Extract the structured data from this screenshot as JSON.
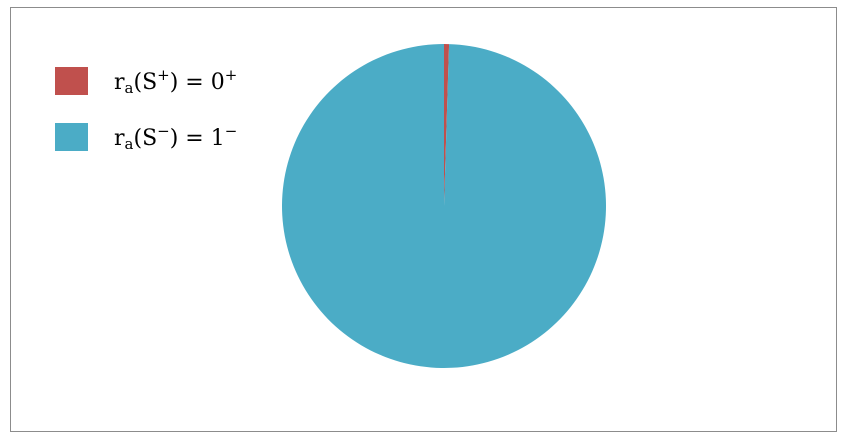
{
  "chart_data": {
    "type": "pie",
    "title": "",
    "legend_position": "top-left",
    "slices": [
      {
        "label_parts": [
          "r",
          "a",
          "(S",
          "+",
          ") = 0",
          "+"
        ],
        "value": 0.5,
        "color": "#c0504d"
      },
      {
        "label_parts": [
          "r",
          "a",
          "(S",
          "−",
          ") = 1",
          "−"
        ],
        "value": 99.5,
        "color": "#4bacc6"
      }
    ]
  }
}
